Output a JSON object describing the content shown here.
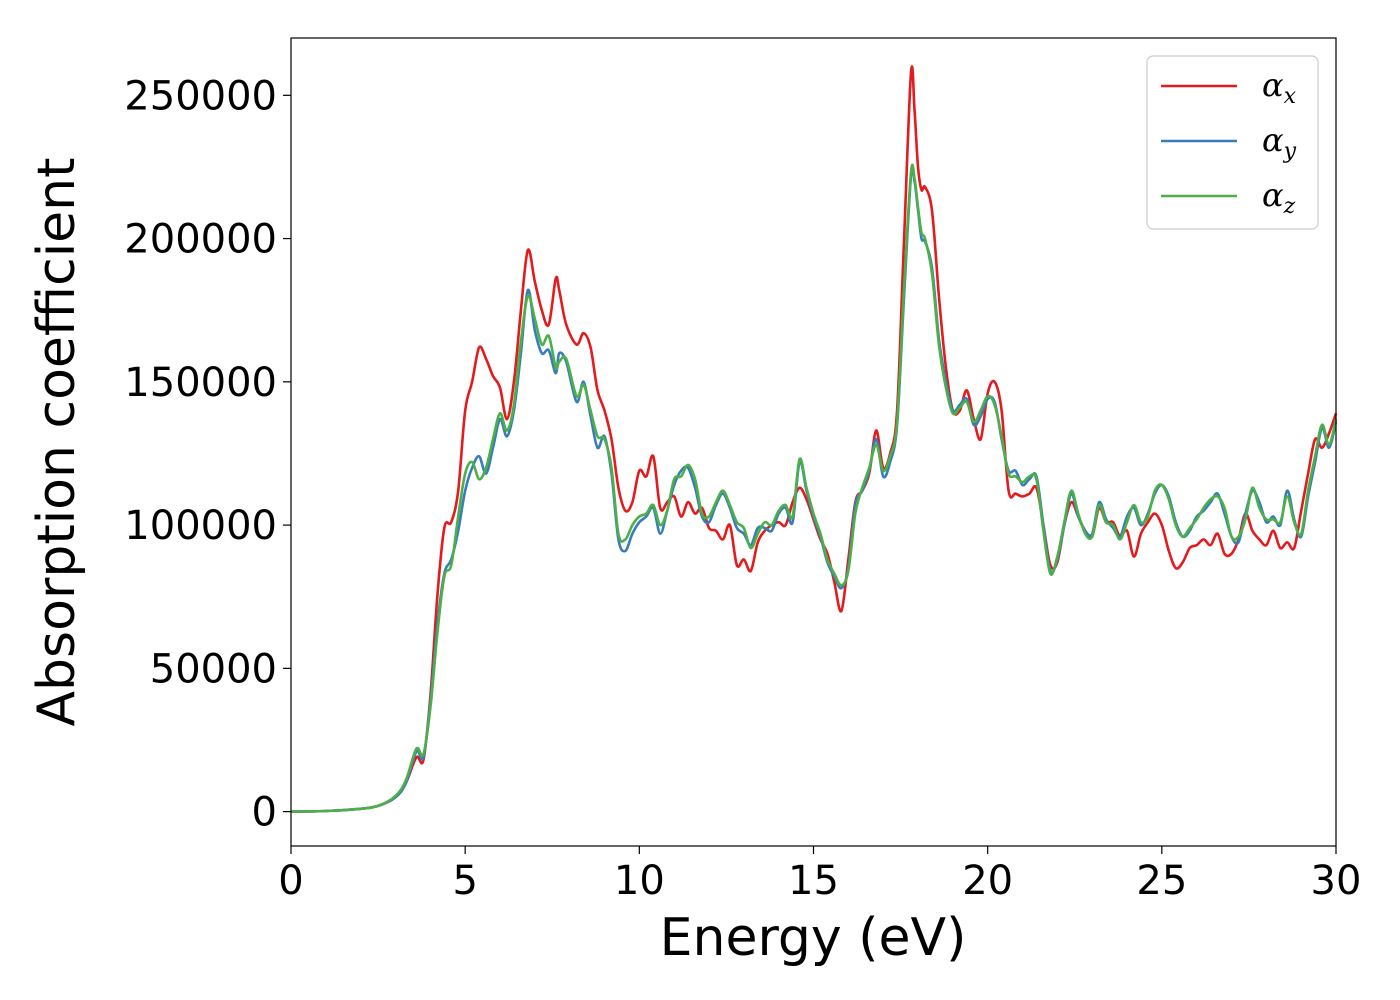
{
  "chart_data": {
    "type": "line",
    "title": "",
    "xlabel": "Energy (eV)",
    "ylabel": "Absorption coefficient",
    "xlim": [
      0,
      30
    ],
    "ylim": [
      -12000,
      270000
    ],
    "xticks": [
      0,
      5,
      10,
      15,
      20,
      25,
      30
    ],
    "yticks": [
      0,
      50000,
      100000,
      150000,
      200000,
      250000
    ],
    "grid": false,
    "legend_position": "top-right",
    "series": [
      {
        "name": "α",
        "subscript": "x",
        "color": "#e41a1c",
        "x": [
          0,
          1,
          2,
          2.5,
          3,
          3.3,
          3.6,
          3.8,
          4,
          4.2,
          4.4,
          4.6,
          4.8,
          5,
          5.2,
          5.4,
          5.6,
          5.8,
          6,
          6.2,
          6.4,
          6.6,
          6.8,
          7,
          7.2,
          7.4,
          7.6,
          7.7,
          7.9,
          8.2,
          8.4,
          8.6,
          8.8,
          9.0,
          9.2,
          9.4,
          9.6,
          9.8,
          10.0,
          10.2,
          10.4,
          10.6,
          10.8,
          11.0,
          11.2,
          11.4,
          11.6,
          11.8,
          12.0,
          12.2,
          12.4,
          12.6,
          12.8,
          13.0,
          13.2,
          13.4,
          13.6,
          13.8,
          14.0,
          14.2,
          14.4,
          14.6,
          14.8,
          15.0,
          15.2,
          15.4,
          15.6,
          15.8,
          16.0,
          16.2,
          16.4,
          16.6,
          16.8,
          17.0,
          17.2,
          17.4,
          17.6,
          17.8,
          17.9,
          18.0,
          18.1,
          18.2,
          18.4,
          18.6,
          18.8,
          19.0,
          19.2,
          19.4,
          19.6,
          19.8,
          20.0,
          20.2,
          20.4,
          20.6,
          20.8,
          21.0,
          21.2,
          21.4,
          21.6,
          21.8,
          22.0,
          22.2,
          22.4,
          22.6,
          22.8,
          23.0,
          23.2,
          23.4,
          23.6,
          23.8,
          24.0,
          24.2,
          24.4,
          24.6,
          24.8,
          25.0,
          25.2,
          25.4,
          25.6,
          25.8,
          26.0,
          26.2,
          26.4,
          26.6,
          26.8,
          27.0,
          27.2,
          27.4,
          27.6,
          27.8,
          28.0,
          28.2,
          28.4,
          28.6,
          28.8,
          29.0,
          29.2,
          29.4,
          29.6,
          29.8,
          30.0
        ],
        "y": [
          0,
          200,
          1000,
          2000,
          5000,
          10000,
          19000,
          18000,
          40000,
          75000,
          99000,
          101000,
          112000,
          140000,
          150000,
          162000,
          158000,
          152000,
          148000,
          137000,
          150000,
          175000,
          196000,
          185000,
          175000,
          170000,
          186000,
          182000,
          170000,
          163000,
          167000,
          162000,
          147000,
          140000,
          130000,
          113000,
          105000,
          108000,
          119000,
          117000,
          124000,
          106000,
          108000,
          110000,
          103000,
          108000,
          104000,
          106000,
          99000,
          98000,
          95000,
          100000,
          86000,
          88000,
          84000,
          94000,
          98000,
          100000,
          101000,
          100000,
          108000,
          113000,
          109000,
          102000,
          95000,
          90000,
          80000,
          70000,
          88000,
          108000,
          112000,
          118000,
          133000,
          120000,
          125000,
          140000,
          200000,
          258000,
          245000,
          225000,
          217000,
          218000,
          210000,
          180000,
          155000,
          140000,
          140000,
          147000,
          137000,
          130000,
          146000,
          150000,
          140000,
          112000,
          111000,
          110000,
          111000,
          113000,
          100000,
          86000,
          87000,
          100000,
          108000,
          103000,
          98000,
          96000,
          106000,
          101000,
          101000,
          96000,
          98000,
          89000,
          97000,
          101000,
          104000,
          100000,
          91000,
          85000,
          87000,
          92000,
          93000,
          95000,
          93000,
          97000,
          90000,
          90000,
          95000,
          104000,
          98000,
          95000,
          93000,
          98000,
          92000,
          94000,
          92000,
          105000,
          118000,
          130000,
          127000,
          132000,
          139000
        ]
      },
      {
        "name": "α",
        "subscript": "y",
        "color": "#377eb8",
        "x": [
          0,
          1,
          2,
          2.5,
          3,
          3.3,
          3.6,
          3.8,
          4,
          4.2,
          4.4,
          4.6,
          4.8,
          5,
          5.2,
          5.4,
          5.6,
          5.8,
          6,
          6.2,
          6.4,
          6.6,
          6.8,
          7,
          7.2,
          7.4,
          7.6,
          7.7,
          7.9,
          8.2,
          8.4,
          8.6,
          8.8,
          9.0,
          9.2,
          9.4,
          9.6,
          9.8,
          10.0,
          10.2,
          10.4,
          10.6,
          10.8,
          11.0,
          11.2,
          11.4,
          11.6,
          11.8,
          12.0,
          12.2,
          12.4,
          12.6,
          12.8,
          13.0,
          13.2,
          13.4,
          13.6,
          13.8,
          14.0,
          14.2,
          14.4,
          14.6,
          14.8,
          15.0,
          15.2,
          15.4,
          15.6,
          15.8,
          16.0,
          16.2,
          16.4,
          16.6,
          16.8,
          17.0,
          17.2,
          17.4,
          17.6,
          17.8,
          17.9,
          18.0,
          18.1,
          18.2,
          18.4,
          18.6,
          18.8,
          19.0,
          19.2,
          19.4,
          19.6,
          19.8,
          20.0,
          20.2,
          20.4,
          20.6,
          20.8,
          21.0,
          21.2,
          21.4,
          21.6,
          21.8,
          22.0,
          22.2,
          22.4,
          22.6,
          22.8,
          23.0,
          23.2,
          23.4,
          23.6,
          23.8,
          24.0,
          24.2,
          24.4,
          24.6,
          24.8,
          25.0,
          25.2,
          25.4,
          25.6,
          25.8,
          26.0,
          26.2,
          26.4,
          26.6,
          26.8,
          27.0,
          27.2,
          27.4,
          27.6,
          27.8,
          28.0,
          28.2,
          28.4,
          28.6,
          28.8,
          29.0,
          29.2,
          29.4,
          29.6,
          29.8,
          30.0
        ],
        "y": [
          0,
          200,
          1000,
          2000,
          5000,
          10000,
          21000,
          19000,
          38000,
          65000,
          83000,
          88000,
          98000,
          112000,
          120000,
          124000,
          118000,
          127000,
          137000,
          131000,
          140000,
          160000,
          182000,
          168000,
          160000,
          161000,
          153000,
          160000,
          157000,
          143000,
          150000,
          138000,
          127000,
          131000,
          118000,
          95000,
          91000,
          97000,
          101000,
          103000,
          106000,
          97000,
          105000,
          114000,
          119000,
          120000,
          113000,
          103000,
          101000,
          107000,
          111000,
          106000,
          99000,
          97000,
          93000,
          99000,
          99000,
          98000,
          104000,
          106000,
          101000,
          122000,
          112000,
          103000,
          96000,
          87000,
          82000,
          78000,
          85000,
          107000,
          112000,
          119000,
          130000,
          117000,
          122000,
          135000,
          180000,
          222000,
          220000,
          210000,
          200000,
          199000,
          190000,
          165000,
          150000,
          140000,
          142000,
          144000,
          135000,
          138000,
          144000,
          143000,
          130000,
          119000,
          119000,
          114000,
          116000,
          117000,
          100000,
          84000,
          88000,
          100000,
          111000,
          103000,
          98000,
          97000,
          108000,
          102000,
          99000,
          96000,
          103000,
          106000,
          100000,
          104000,
          111000,
          114000,
          110000,
          101000,
          96000,
          98000,
          103000,
          105000,
          108000,
          111000,
          104000,
          96000,
          94000,
          104000,
          112000,
          108000,
          101000,
          103000,
          100000,
          112000,
          102000,
          96000,
          110000,
          122000,
          134000,
          127000,
          136000
        ]
      },
      {
        "name": "α",
        "subscript": "z",
        "color": "#4daf4a",
        "x": [
          0,
          1,
          2,
          2.5,
          3,
          3.3,
          3.6,
          3.8,
          4,
          4.2,
          4.4,
          4.6,
          4.8,
          5,
          5.2,
          5.4,
          5.6,
          5.8,
          6,
          6.2,
          6.4,
          6.6,
          6.8,
          7,
          7.2,
          7.4,
          7.6,
          7.7,
          7.9,
          8.2,
          8.4,
          8.6,
          8.8,
          9.0,
          9.2,
          9.4,
          9.6,
          9.8,
          10.0,
          10.2,
          10.4,
          10.6,
          10.8,
          11.0,
          11.2,
          11.4,
          11.6,
          11.8,
          12.0,
          12.2,
          12.4,
          12.6,
          12.8,
          13.0,
          13.2,
          13.4,
          13.6,
          13.8,
          14.0,
          14.2,
          14.4,
          14.6,
          14.8,
          15.0,
          15.2,
          15.4,
          15.6,
          15.8,
          16.0,
          16.2,
          16.4,
          16.6,
          16.8,
          17.0,
          17.2,
          17.4,
          17.6,
          17.8,
          17.9,
          18.0,
          18.1,
          18.2,
          18.4,
          18.6,
          18.8,
          19.0,
          19.2,
          19.4,
          19.6,
          19.8,
          20.0,
          20.2,
          20.4,
          20.6,
          20.8,
          21.0,
          21.2,
          21.4,
          21.6,
          21.8,
          22.0,
          22.2,
          22.4,
          22.6,
          22.8,
          23.0,
          23.2,
          23.4,
          23.6,
          23.8,
          24.0,
          24.2,
          24.4,
          24.6,
          24.8,
          25.0,
          25.2,
          25.4,
          25.6,
          25.8,
          26.0,
          26.2,
          26.4,
          26.6,
          26.8,
          27.0,
          27.2,
          27.4,
          27.6,
          27.8,
          28.0,
          28.2,
          28.4,
          28.6,
          28.8,
          29.0,
          29.2,
          29.4,
          29.6,
          29.8,
          30.0
        ],
        "y": [
          0,
          200,
          1000,
          2000,
          5500,
          11000,
          22000,
          20000,
          36000,
          62000,
          82000,
          86000,
          103000,
          118000,
          122000,
          116000,
          120000,
          130000,
          139000,
          133000,
          142000,
          164000,
          180000,
          172000,
          163000,
          166000,
          155000,
          157000,
          158000,
          145000,
          149000,
          140000,
          131000,
          130000,
          120000,
          97000,
          95000,
          100000,
          103000,
          104000,
          107000,
          100000,
          105000,
          116000,
          117000,
          121000,
          116000,
          104000,
          103000,
          108000,
          112000,
          107000,
          101000,
          99000,
          92000,
          97000,
          101000,
          100000,
          105000,
          107000,
          103000,
          123000,
          113000,
          104000,
          97000,
          88000,
          83000,
          79000,
          84000,
          104000,
          113000,
          120000,
          128000,
          119000,
          124000,
          136000,
          183000,
          223000,
          221000,
          211000,
          202000,
          200000,
          188000,
          163000,
          148000,
          139000,
          141000,
          143000,
          136000,
          140000,
          145000,
          142000,
          131000,
          118000,
          117000,
          115000,
          117000,
          116000,
          98000,
          83000,
          89000,
          101000,
          112000,
          104000,
          97000,
          96000,
          107000,
          101000,
          100000,
          95000,
          101000,
          107000,
          101000,
          103000,
          112000,
          114000,
          109000,
          100000,
          96000,
          99000,
          102000,
          106000,
          109000,
          110000,
          106000,
          96000,
          96000,
          102000,
          113000,
          106000,
          102000,
          102000,
          101000,
          110000,
          101000,
          97000,
          112000,
          124000,
          135000,
          128000,
          137000
        ]
      }
    ]
  }
}
